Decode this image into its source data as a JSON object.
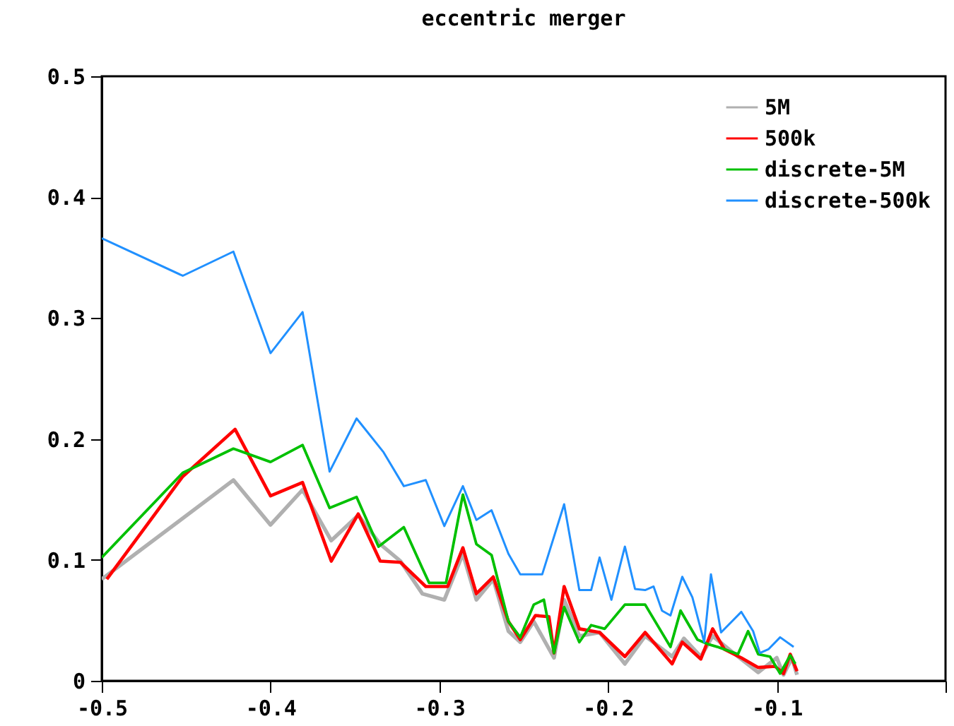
{
  "chart_data": {
    "type": "line",
    "title": "eccentric merger",
    "xlim": [
      -0.5,
      0
    ],
    "xticks": [
      -0.5,
      -0.4,
      -0.3,
      -0.2,
      -0.1,
      {
        "value": 0,
        "label": null
      }
    ],
    "ylim": [
      0,
      0.5
    ],
    "yticks": [
      0,
      0.1,
      0.2,
      0.3,
      0.4,
      0.5
    ],
    "legend": "top right",
    "grid": false,
    "marker": "none",
    "series": [
      {
        "name": "5M",
        "color": "#b0b0b0",
        "x": [
          -0.5,
          -0.422,
          -0.4,
          -0.381,
          -0.364,
          -0.348,
          -0.335,
          -0.323,
          -0.31,
          -0.297,
          -0.286,
          -0.278,
          -0.268,
          -0.259,
          -0.252,
          -0.244,
          -0.232,
          -0.226,
          -0.217,
          -0.205,
          -0.19,
          -0.178,
          -0.162,
          -0.155,
          -0.145,
          -0.138,
          -0.123,
          -0.111,
          -0.1,
          -0.096,
          -0.091,
          -0.088
        ],
        "values": [
          0.084,
          0.166,
          0.129,
          0.158,
          0.116,
          0.137,
          0.113,
          0.099,
          0.072,
          0.067,
          0.105,
          0.067,
          0.084,
          0.041,
          0.032,
          0.049,
          0.019,
          0.067,
          0.037,
          0.04,
          0.014,
          0.037,
          0.02,
          0.035,
          0.02,
          0.037,
          0.02,
          0.007,
          0.019,
          0.005,
          0.019,
          0.005
        ]
      },
      {
        "name": "500k",
        "color": "#ff0000",
        "x": [
          -0.497,
          -0.452,
          -0.421,
          -0.4,
          -0.381,
          -0.364,
          -0.348,
          -0.335,
          -0.323,
          -0.308,
          -0.295,
          -0.286,
          -0.278,
          -0.268,
          -0.259,
          -0.252,
          -0.243,
          -0.235,
          -0.232,
          -0.226,
          -0.217,
          -0.205,
          -0.19,
          -0.178,
          -0.162,
          -0.156,
          -0.145,
          -0.138,
          -0.131,
          -0.121,
          -0.111,
          -0.101,
          -0.096,
          -0.092,
          -0.088
        ],
        "values": [
          0.084,
          0.169,
          0.208,
          0.153,
          0.164,
          0.099,
          0.138,
          0.099,
          0.098,
          0.078,
          0.078,
          0.11,
          0.072,
          0.086,
          0.049,
          0.034,
          0.054,
          0.053,
          0.023,
          0.078,
          0.043,
          0.04,
          0.02,
          0.04,
          0.014,
          0.032,
          0.018,
          0.043,
          0.026,
          0.019,
          0.011,
          0.012,
          0.006,
          0.022,
          0.008
        ]
      },
      {
        "name": "discrete-5M",
        "color": "#00c000",
        "x": [
          -0.5,
          -0.452,
          -0.422,
          -0.4,
          -0.381,
          -0.365,
          -0.349,
          -0.336,
          -0.321,
          -0.31,
          -0.306,
          -0.296,
          -0.286,
          -0.278,
          -0.269,
          -0.259,
          -0.252,
          -0.244,
          -0.238,
          -0.232,
          -0.226,
          -0.217,
          -0.21,
          -0.202,
          -0.19,
          -0.178,
          -0.172,
          -0.163,
          -0.157,
          -0.147,
          -0.14,
          -0.135,
          -0.123,
          -0.117,
          -0.111,
          -0.104,
          -0.098,
          -0.092,
          -0.089
        ],
        "values": [
          0.102,
          0.172,
          0.192,
          0.181,
          0.195,
          0.143,
          0.152,
          0.111,
          0.127,
          0.093,
          0.081,
          0.081,
          0.154,
          0.113,
          0.104,
          0.049,
          0.036,
          0.063,
          0.067,
          0.023,
          0.061,
          0.032,
          0.046,
          0.043,
          0.063,
          0.063,
          0.049,
          0.028,
          0.058,
          0.034,
          0.03,
          0.028,
          0.022,
          0.041,
          0.022,
          0.02,
          0.006,
          0.021,
          0.014
        ]
      },
      {
        "name": "discrete-500k",
        "color": "#2090ff",
        "x": [
          -0.5,
          -0.452,
          -0.422,
          -0.4,
          -0.381,
          -0.365,
          -0.349,
          -0.333,
          -0.321,
          -0.308,
          -0.297,
          -0.286,
          -0.278,
          -0.269,
          -0.259,
          -0.252,
          -0.239,
          -0.226,
          -0.217,
          -0.21,
          -0.205,
          -0.198,
          -0.19,
          -0.184,
          -0.178,
          -0.173,
          -0.168,
          -0.163,
          -0.156,
          -0.15,
          -0.143,
          -0.139,
          -0.133,
          -0.121,
          -0.114,
          -0.11,
          -0.105,
          -0.098,
          -0.09
        ],
        "values": [
          0.366,
          0.335,
          0.355,
          0.271,
          0.305,
          0.173,
          0.217,
          0.189,
          0.161,
          0.166,
          0.128,
          0.161,
          0.133,
          0.141,
          0.105,
          0.088,
          0.088,
          0.146,
          0.075,
          0.075,
          0.102,
          0.067,
          0.111,
          0.076,
          0.075,
          0.078,
          0.058,
          0.054,
          0.086,
          0.069,
          0.032,
          0.088,
          0.04,
          0.057,
          0.041,
          0.023,
          0.026,
          0.036,
          0.028
        ]
      }
    ]
  }
}
